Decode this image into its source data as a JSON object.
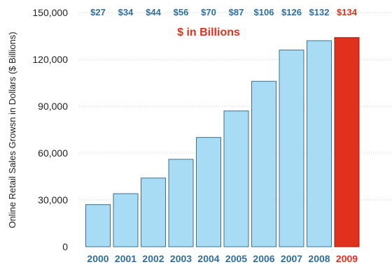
{
  "chart_data": {
    "type": "bar",
    "categories": [
      "2000",
      "2001",
      "2002",
      "2003",
      "2004",
      "2005",
      "2006",
      "2007",
      "2008",
      "2009"
    ],
    "values": [
      27000,
      34000,
      44000,
      56000,
      70000,
      87000,
      106000,
      126000,
      132000,
      134000
    ],
    "value_labels": [
      "$27",
      "$34",
      "$44",
      "$56",
      "$70",
      "$87",
      "$106",
      "$126",
      "$132",
      "$134"
    ],
    "highlight_index": 9,
    "subtitle": "$ in Billions",
    "ylabel": "Online Retail Sales Growsn in Dollars ($ Billions)",
    "xlabel": "",
    "yticks": [
      "0",
      "30,000",
      "60,000",
      "90,000",
      "120,000",
      "150,000"
    ],
    "ytick_values": [
      0,
      30000,
      60000,
      90000,
      120000,
      150000
    ],
    "ylim": [
      0,
      150000
    ],
    "grid": true,
    "colors": {
      "bar": "#a8dcf4",
      "bar_stroke": "#3d6f8e",
      "highlight": "#e0301e",
      "highlight_stroke": "#a01a10",
      "label": "#2e6e9e",
      "highlight_label": "#e0301e"
    }
  }
}
